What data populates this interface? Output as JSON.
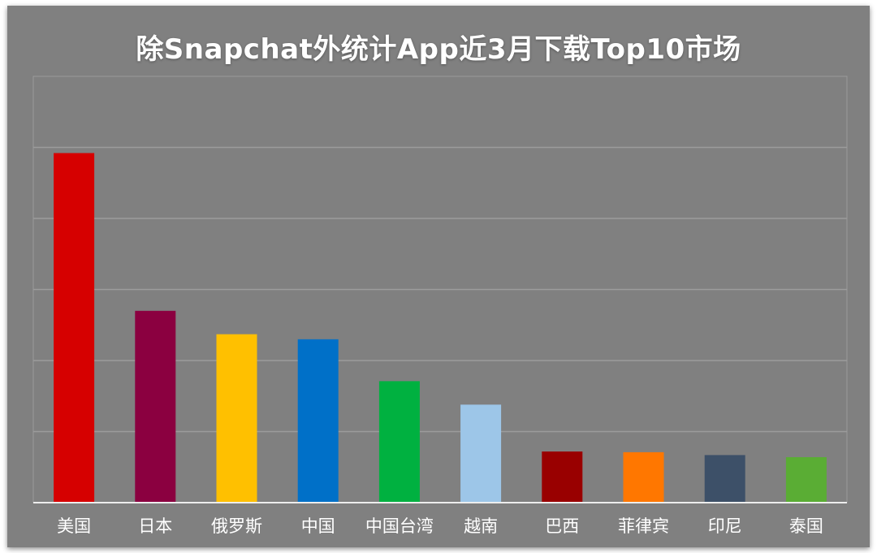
{
  "chart_data": {
    "type": "bar",
    "title": "除Snapchat外统计App近3月下载Top10市场",
    "categories": [
      "美国",
      "日本",
      "俄罗斯",
      "中国",
      "中国台湾",
      "越南",
      "巴西",
      "菲律宾",
      "印尼",
      "泰国"
    ],
    "values": [
      49.2,
      27.0,
      23.7,
      23.0,
      17.1,
      13.8,
      7.2,
      7.1,
      6.7,
      6.4
    ],
    "colors": [
      "#d60000",
      "#8b0040",
      "#ffc000",
      "#0070c8",
      "#00b140",
      "#9dc6e8",
      "#990000",
      "#ff7700",
      "#3d5068",
      "#5aad34"
    ],
    "ylim": [
      0,
      60
    ],
    "grid": true
  }
}
